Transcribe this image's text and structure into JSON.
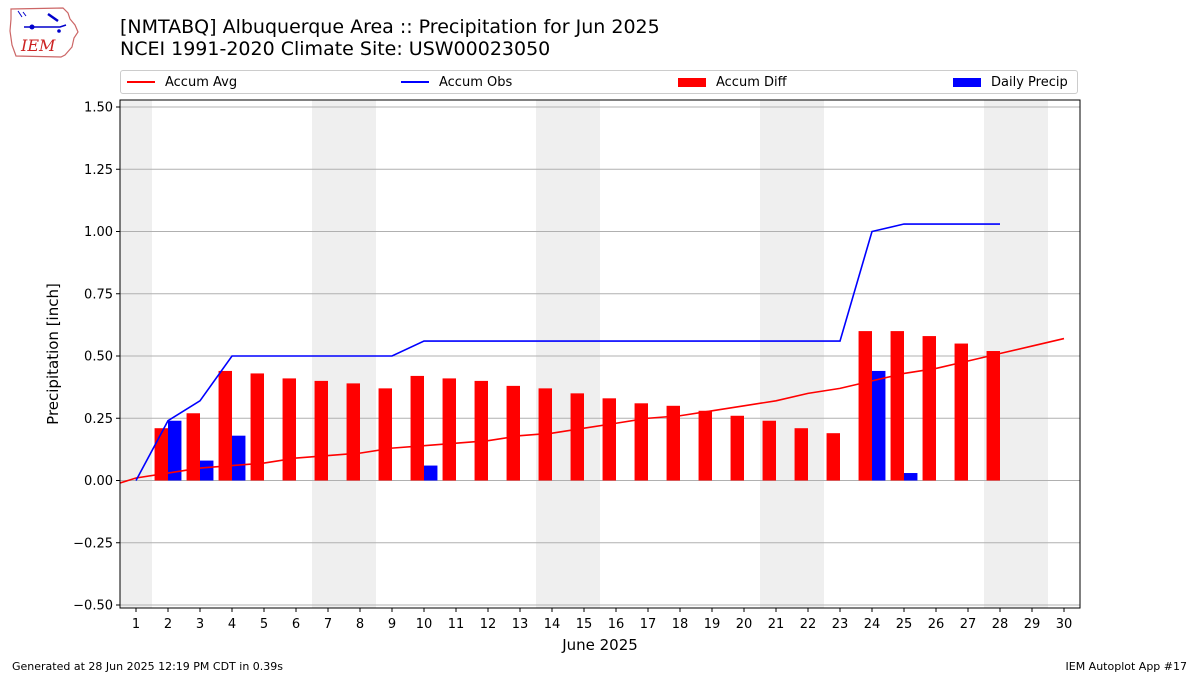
{
  "logo": {
    "text": "IEM"
  },
  "chart_data": {
    "type": "bar",
    "title": "[NMTABQ] Albuquerque Area :: Precipitation for Jun 2025",
    "subtitle": "NCEI 1991-2020 Climate Site: USW00023050",
    "xlabel": "June 2025",
    "ylabel": "Precipitation [inch]",
    "ylim": [
      -0.5,
      1.5
    ],
    "xlim": [
      0.5,
      30.5
    ],
    "yticks": [
      -0.5,
      -0.25,
      0.0,
      0.25,
      0.5,
      0.75,
      1.0,
      1.25,
      1.5
    ],
    "ytick_labels": [
      "−0.50",
      "−0.25",
      "0.00",
      "0.25",
      "0.50",
      "0.75",
      "1.00",
      "1.25",
      "1.50"
    ],
    "x_ticks": [
      "1",
      "2",
      "3",
      "4",
      "5",
      "6",
      "7",
      "8",
      "9",
      "10",
      "11",
      "12",
      "13",
      "14",
      "15",
      "16",
      "17",
      "18",
      "19",
      "20",
      "21",
      "22",
      "23",
      "24",
      "25",
      "26",
      "27",
      "28",
      "29",
      "30"
    ],
    "grid": true,
    "legend_position": "top",
    "weekend_shading": [
      [
        0.5,
        1.5
      ],
      [
        6.5,
        8.5
      ],
      [
        13.5,
        15.5
      ],
      [
        20.5,
        22.5
      ],
      [
        27.5,
        29.5
      ]
    ],
    "series": [
      {
        "name": "Accum Avg",
        "type": "line",
        "color": "#ff0000",
        "x": [
          0.5,
          1,
          2,
          3,
          4,
          5,
          6,
          7,
          8,
          9,
          10,
          11,
          12,
          13,
          14,
          15,
          16,
          17,
          18,
          19,
          20,
          21,
          22,
          23,
          24,
          25,
          26,
          27,
          28,
          29,
          30
        ],
        "values": [
          -0.01,
          0.01,
          0.03,
          0.05,
          0.06,
          0.07,
          0.09,
          0.1,
          0.11,
          0.13,
          0.14,
          0.15,
          0.16,
          0.18,
          0.19,
          0.21,
          0.23,
          0.25,
          0.26,
          0.28,
          0.3,
          0.32,
          0.35,
          0.37,
          0.4,
          0.43,
          0.45,
          0.48,
          0.51,
          0.54,
          0.57
        ]
      },
      {
        "name": "Accum Obs",
        "type": "line",
        "color": "#0000ff",
        "x": [
          1,
          2,
          3,
          4,
          5,
          6,
          7,
          8,
          9,
          10,
          11,
          12,
          13,
          14,
          15,
          16,
          17,
          18,
          19,
          20,
          21,
          22,
          23,
          24,
          25,
          26,
          27,
          28
        ],
        "values": [
          0.0,
          0.24,
          0.32,
          0.5,
          0.5,
          0.5,
          0.5,
          0.5,
          0.5,
          0.56,
          0.56,
          0.56,
          0.56,
          0.56,
          0.56,
          0.56,
          0.56,
          0.56,
          0.56,
          0.56,
          0.56,
          0.56,
          0.56,
          1.0,
          1.03,
          1.03,
          1.03,
          1.03
        ]
      },
      {
        "name": "Accum Diff",
        "type": "bar",
        "color": "#ff0000",
        "x": [
          2,
          3,
          4,
          5,
          6,
          7,
          8,
          9,
          10,
          11,
          12,
          13,
          14,
          15,
          16,
          17,
          18,
          19,
          20,
          21,
          22,
          23,
          24,
          25,
          26,
          27,
          28
        ],
        "values": [
          0.21,
          0.27,
          0.44,
          0.43,
          0.41,
          0.4,
          0.39,
          0.37,
          0.42,
          0.41,
          0.4,
          0.38,
          0.37,
          0.35,
          0.33,
          0.31,
          0.3,
          0.28,
          0.26,
          0.24,
          0.21,
          0.19,
          0.6,
          0.6,
          0.58,
          0.55,
          0.52
        ]
      },
      {
        "name": "Daily Precip",
        "type": "bar",
        "color": "#0000ff",
        "x": [
          2,
          3,
          4,
          10,
          24,
          25
        ],
        "values": [
          0.24,
          0.08,
          0.18,
          0.06,
          0.44,
          0.03
        ]
      }
    ]
  },
  "footer": {
    "left": "Generated at 28 Jun 2025 12:19 PM CDT in 0.39s",
    "right": "IEM Autoplot App #17"
  }
}
